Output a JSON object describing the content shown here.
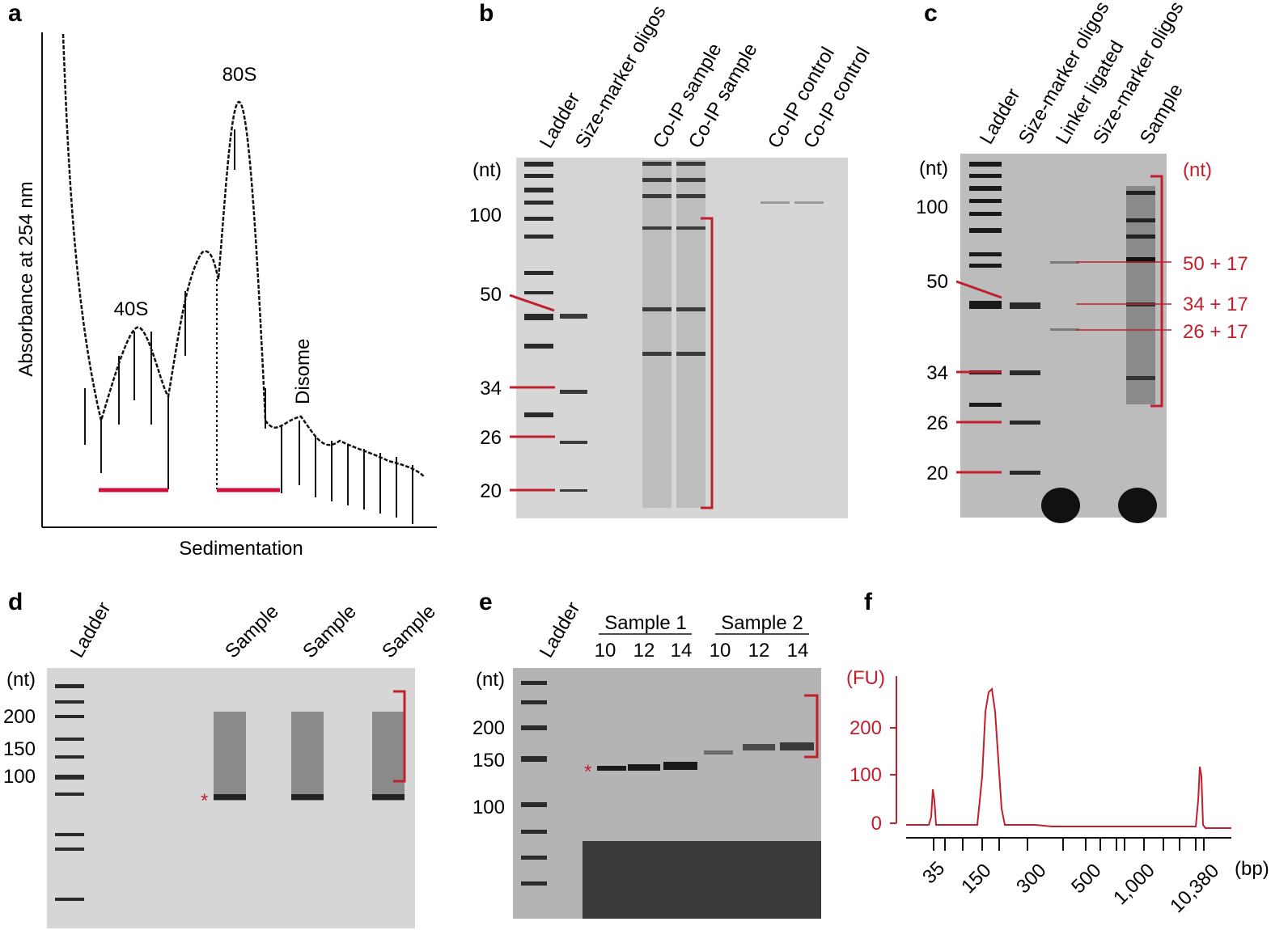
{
  "panels": {
    "a": {
      "label": "a",
      "ylabel": "Absorbance at 254 nm",
      "xlabel": "Sedimentation",
      "peaks": [
        "40S",
        "80S",
        "Disome"
      ]
    },
    "b": {
      "label": "b",
      "lanes": [
        "Ladder",
        "Size-marker oligos",
        "Co-IP sample",
        "Co-IP sample",
        "Co-IP control",
        "Co-IP control"
      ],
      "unit": "(nt)",
      "markers": [
        "100",
        "50",
        "34",
        "26",
        "20"
      ]
    },
    "c": {
      "label": "c",
      "lanes": [
        "Ladder",
        "Size-marker oligos",
        "Linker ligated",
        "Size-marker oligos",
        "Sample"
      ],
      "unit": "(nt)",
      "unit_right": "(nt)",
      "markers": [
        "100",
        "50",
        "34",
        "26",
        "20"
      ],
      "annotations": [
        "50 + 17",
        "34 + 17",
        "26 + 17"
      ]
    },
    "d": {
      "label": "d",
      "lanes": [
        "Ladder",
        "Sample",
        "Sample",
        "Sample"
      ],
      "unit": "(nt)",
      "markers": [
        "200",
        "150",
        "100"
      ],
      "star": "*"
    },
    "e": {
      "label": "e",
      "lanes": [
        "Ladder"
      ],
      "groups": [
        "Sample 1",
        "Sample 2"
      ],
      "cycles": [
        "10",
        "12",
        "14",
        "10",
        "12",
        "14"
      ],
      "unit": "(nt)",
      "markers": [
        "200",
        "150",
        "100"
      ],
      "star": "*"
    },
    "f": {
      "label": "f",
      "ylabel_unit": "(FU)",
      "xlabel_unit": "(bp)",
      "yticks": [
        "200",
        "100",
        "0"
      ],
      "xticks": [
        "35",
        "150",
        "300",
        "500",
        "1,000",
        "10,380"
      ]
    }
  },
  "chart_data": {
    "type": "line",
    "title": "",
    "xlabel": "(bp)",
    "ylabel": "(FU)",
    "ylim": [
      0,
      300
    ],
    "xticks": [
      "35",
      "150",
      "300",
      "500",
      "1,000",
      "10,380"
    ],
    "series": [
      {
        "values": [
          {
            "x": "35",
            "y": 75
          },
          {
            "x": "150",
            "y": 270
          },
          {
            "x": "300",
            "y": 3
          },
          {
            "x": "10,380",
            "y": 115
          }
        ]
      }
    ]
  },
  "colors": {
    "accent_red": "#c0202e",
    "gel": "#d6d6d6",
    "band": "#2a2a2a"
  }
}
